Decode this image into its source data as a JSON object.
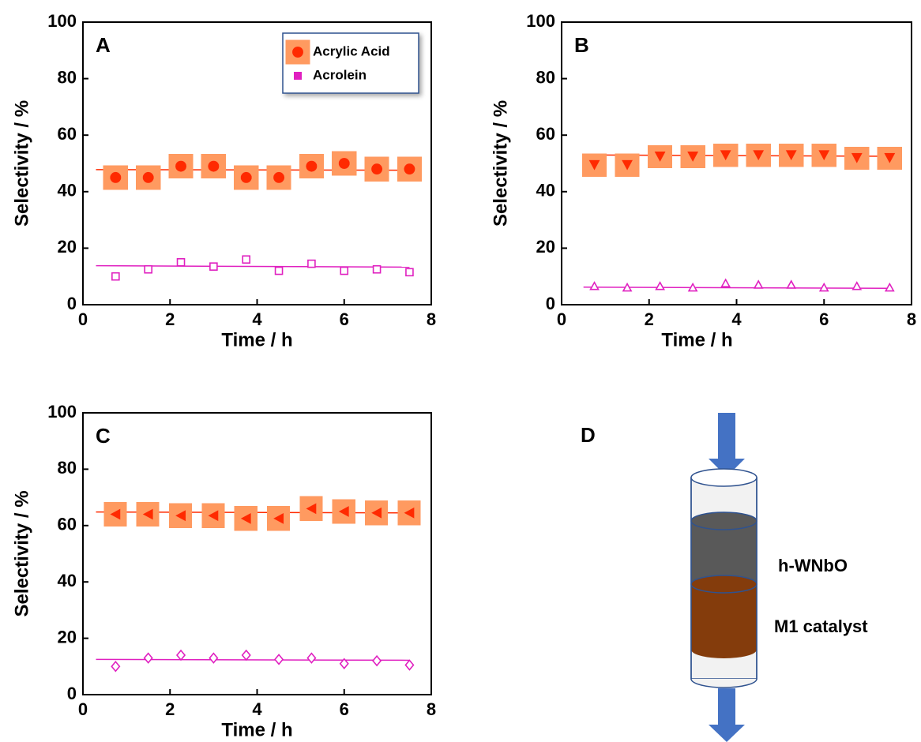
{
  "chart_data": [
    {
      "type": "scatter",
      "panel": "A",
      "xlabel": "Time / h",
      "ylabel": "Selectivity / %",
      "x": [
        0.75,
        1.5,
        2.25,
        3,
        3.75,
        4.5,
        5.25,
        6,
        6.75,
        7.5
      ],
      "xlim": [
        0,
        8
      ],
      "xticks": [
        0,
        2,
        4,
        6,
        8
      ],
      "ylim": [
        0,
        100
      ],
      "yticks": [
        0,
        20,
        40,
        60,
        80,
        100
      ],
      "legend": "upper right",
      "series": [
        {
          "name": "Acrylic Acid",
          "color": "#ff2a00",
          "marker": "circle",
          "values": [
            45,
            45,
            49,
            49,
            45,
            45,
            49,
            50,
            48,
            48
          ],
          "fit_x": [
            0.3,
            7.5
          ],
          "fit_y": [
            47.8,
            47.6
          ]
        },
        {
          "name": "Acrolein",
          "color": "#e020c0",
          "marker": "square-open",
          "values": [
            10,
            12.5,
            15,
            13.5,
            16,
            12,
            14.5,
            12,
            12.5,
            11.5
          ],
          "fit_x": [
            0.3,
            7.5
          ],
          "fit_y": [
            13.8,
            13.3
          ]
        }
      ]
    },
    {
      "type": "scatter",
      "panel": "B",
      "xlabel": "Time / h",
      "ylabel": "Selectivity / %",
      "x": [
        0.75,
        1.5,
        2.25,
        3,
        3.75,
        4.5,
        5.25,
        6,
        6.75,
        7.5
      ],
      "xlim": [
        0,
        8
      ],
      "xticks": [
        0,
        2,
        4,
        6,
        8
      ],
      "ylim": [
        0,
        100
      ],
      "yticks": [
        0,
        20,
        40,
        60,
        80,
        100
      ],
      "series": [
        {
          "color": "#ff2a00",
          "marker": "triangle-down",
          "values": [
            49.5,
            49.5,
            52.5,
            52.5,
            53,
            53,
            53,
            53,
            52,
            52
          ],
          "fit_x": [
            0.5,
            7.5
          ],
          "fit_y": [
            53,
            52.5
          ]
        },
        {
          "color": "#e020c0",
          "marker": "triangle-up-open",
          "values": [
            6.5,
            6,
            6.5,
            6,
            7.5,
            7,
            7,
            6,
            6.5,
            6
          ],
          "fit_x": [
            0.5,
            7.5
          ],
          "fit_y": [
            6.2,
            5.8
          ]
        }
      ]
    },
    {
      "type": "scatter",
      "panel": "C",
      "xlabel": "Time / h",
      "ylabel": "Selectivity / %",
      "x": [
        0.75,
        1.5,
        2.25,
        3,
        3.75,
        4.5,
        5.25,
        6,
        6.75,
        7.5
      ],
      "xlim": [
        0,
        8
      ],
      "xticks": [
        0,
        2,
        4,
        6,
        8
      ],
      "ylim": [
        0,
        100
      ],
      "yticks": [
        0,
        20,
        40,
        60,
        80,
        100
      ],
      "series": [
        {
          "color": "#ff2a00",
          "marker": "triangle-left",
          "values": [
            64,
            64,
            63.5,
            63.5,
            62.5,
            62.5,
            66,
            65,
            64.5,
            64.5
          ],
          "fit_x": [
            0.3,
            7.5
          ],
          "fit_y": [
            64.8,
            64.5
          ]
        },
        {
          "color": "#e020c0",
          "marker": "diamond-open",
          "values": [
            10,
            13,
            14,
            13,
            14,
            12.5,
            13,
            11,
            12,
            10.5
          ],
          "fit_x": [
            0.3,
            7.5
          ],
          "fit_y": [
            12.5,
            12.2
          ]
        }
      ]
    }
  ],
  "diagram": {
    "panel": "D",
    "layers": [
      "h-WNbO",
      "M1 catalyst"
    ]
  }
}
